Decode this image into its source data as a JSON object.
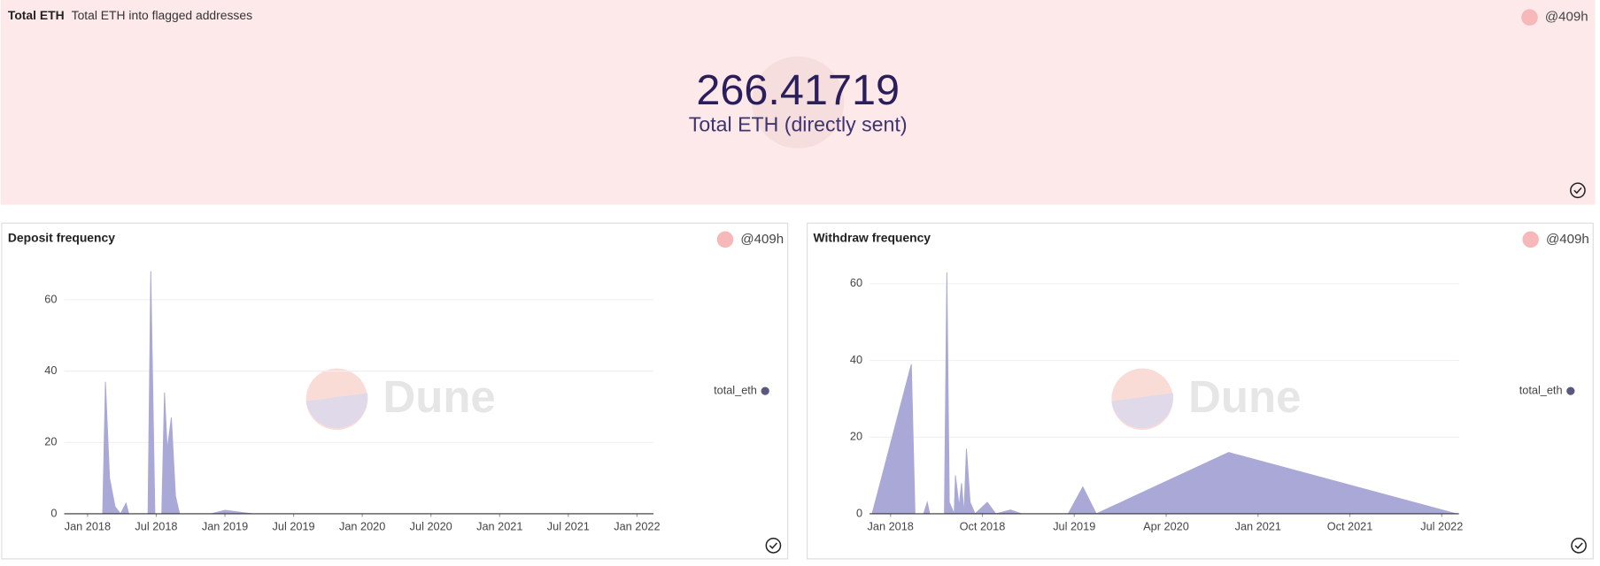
{
  "counter": {
    "title": "Total ETH",
    "subtitle": "Total ETH into flagged addresses",
    "user": "@409h",
    "value": 266.41719,
    "label": "Total ETH (directly sent)"
  },
  "watermark": "Dune",
  "chart_data": [
    {
      "type": "area",
      "title": "Deposit frequency",
      "user": "@409h",
      "x": [
        2017.83,
        2018.11,
        2018.13,
        2018.16,
        2018.2,
        2018.24,
        2018.28,
        2018.3,
        2018.44,
        2018.46,
        2018.49,
        2018.54,
        2018.56,
        2018.58,
        2018.61,
        2018.64,
        2018.67,
        2018.9,
        2019.0,
        2019.1,
        2019.2,
        2022.12
      ],
      "series": [
        {
          "name": "total_eth",
          "color": "#a9a8d6",
          "values": [
            0,
            0,
            37,
            10,
            2,
            0,
            3,
            0,
            0,
            68,
            0,
            0,
            34,
            18,
            27,
            5,
            0,
            0,
            1,
            0.5,
            0,
            0
          ]
        }
      ],
      "xlim": [
        2017.83,
        2022.12
      ],
      "xticks": [
        {
          "value": 2018,
          "label": "Jan 2018"
        },
        {
          "value": 2018.5,
          "label": "Jul 2018"
        },
        {
          "value": 2019,
          "label": "Jan 2019"
        },
        {
          "value": 2019.5,
          "label": "Jul 2019"
        },
        {
          "value": 2020,
          "label": "Jan 2020"
        },
        {
          "value": 2020.5,
          "label": "Jul 2020"
        },
        {
          "value": 2021,
          "label": "Jan 2021"
        },
        {
          "value": 2021.5,
          "label": "Jul 2021"
        },
        {
          "value": 2022,
          "label": "Jan 2022"
        }
      ],
      "ylim": [
        0,
        70
      ],
      "yticks": [
        0,
        20,
        40,
        60
      ],
      "grid": true
    },
    {
      "type": "area",
      "title": "Withdraw frequency",
      "user": "@409h",
      "x": [
        2017.83,
        2017.85,
        2018.17,
        2018.2,
        2018.27,
        2018.3,
        2018.32,
        2018.44,
        2018.46,
        2018.48,
        2018.52,
        2018.53,
        2018.56,
        2018.58,
        2018.6,
        2018.62,
        2018.65,
        2018.69,
        2018.79,
        2018.86,
        2018.98,
        2019.07,
        2019.45,
        2019.57,
        2019.68,
        2020.76,
        2022.62
      ],
      "series": [
        {
          "name": "total_eth",
          "color": "#a9a8d6",
          "values": [
            0,
            0,
            39,
            0,
            0,
            3,
            0,
            0,
            63,
            3,
            0,
            10,
            2,
            8,
            0,
            17,
            3,
            0,
            3,
            0,
            1,
            0,
            0,
            7,
            0,
            16,
            0
          ]
        }
      ],
      "xlim": [
        2017.83,
        2022.64
      ],
      "xticks": [
        {
          "value": 2018,
          "label": "Jan 2018"
        },
        {
          "value": 2018.75,
          "label": "Oct 2018"
        },
        {
          "value": 2019.5,
          "label": "Jul 2019"
        },
        {
          "value": 2020.25,
          "label": "Apr 2020"
        },
        {
          "value": 2021,
          "label": "Jan 2021"
        },
        {
          "value": 2021.75,
          "label": "Oct 2021"
        },
        {
          "value": 2022.5,
          "label": "Jul 2022"
        }
      ],
      "ylim": [
        0,
        63
      ],
      "yticks": [
        0,
        20,
        40,
        60
      ],
      "grid": true
    }
  ]
}
